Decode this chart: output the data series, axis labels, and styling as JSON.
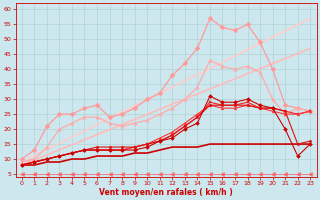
{
  "background_color": "#cce8ee",
  "grid_color": "#aacccc",
  "xlabel": "Vent moyen/en rafales ( km/h )",
  "xlim": [
    -0.5,
    23.5
  ],
  "ylim": [
    4,
    62
  ],
  "yticks": [
    5,
    10,
    15,
    20,
    25,
    30,
    35,
    40,
    45,
    50,
    55,
    60
  ],
  "xticks": [
    0,
    1,
    2,
    3,
    4,
    5,
    6,
    7,
    8,
    9,
    10,
    11,
    12,
    13,
    14,
    15,
    16,
    17,
    18,
    19,
    20,
    21,
    22,
    23
  ],
  "lines": [
    {
      "x": [
        0,
        23
      ],
      "y": [
        9,
        57
      ],
      "color": "#ffcccc",
      "marker": null,
      "linewidth": 1.2,
      "zorder": 1
    },
    {
      "x": [
        0,
        23
      ],
      "y": [
        8,
        47
      ],
      "color": "#ffbbbb",
      "marker": null,
      "linewidth": 1.2,
      "zorder": 1
    },
    {
      "x": [
        0,
        1,
        2,
        3,
        4,
        5,
        6,
        7,
        8,
        9,
        10,
        11,
        12,
        13,
        14,
        15,
        16,
        17,
        18,
        19,
        20,
        21,
        22,
        23
      ],
      "y": [
        10,
        13,
        21,
        25,
        25,
        27,
        28,
        24,
        25,
        27,
        30,
        32,
        38,
        42,
        47,
        57,
        54,
        53,
        55,
        49,
        40,
        28,
        27,
        26
      ],
      "color": "#ff9999",
      "marker": "D",
      "markersize": 2.5,
      "linewidth": 0.9,
      "zorder": 2
    },
    {
      "x": [
        0,
        1,
        2,
        3,
        4,
        5,
        6,
        7,
        8,
        9,
        10,
        11,
        12,
        13,
        14,
        15,
        16,
        17,
        18,
        19,
        20,
        21,
        22,
        23
      ],
      "y": [
        9,
        10,
        14,
        20,
        22,
        24,
        24,
        22,
        21,
        22,
        23,
        25,
        27,
        30,
        34,
        43,
        41,
        40,
        41,
        39,
        30,
        25,
        27,
        26
      ],
      "color": "#ffaaaa",
      "marker": "^",
      "markersize": 2.5,
      "linewidth": 0.9,
      "zorder": 2
    },
    {
      "x": [
        0,
        1,
        2,
        3,
        4,
        5,
        6,
        7,
        8,
        9,
        10,
        11,
        12,
        13,
        14,
        15,
        16,
        17,
        18,
        19,
        20,
        21,
        22,
        23
      ],
      "y": [
        8,
        9,
        10,
        11,
        12,
        13,
        13,
        13,
        13,
        13,
        14,
        16,
        17,
        20,
        22,
        31,
        29,
        29,
        30,
        28,
        27,
        20,
        11,
        15
      ],
      "color": "#cc0000",
      "marker": "D",
      "markersize": 2.0,
      "linewidth": 0.8,
      "zorder": 5
    },
    {
      "x": [
        0,
        1,
        2,
        3,
        4,
        5,
        6,
        7,
        8,
        9,
        10,
        11,
        12,
        13,
        14,
        15,
        16,
        17,
        18,
        19,
        20,
        21,
        22,
        23
      ],
      "y": [
        8,
        9,
        10,
        11,
        12,
        13,
        13,
        13,
        13,
        14,
        15,
        16,
        18,
        21,
        24,
        29,
        28,
        28,
        29,
        27,
        27,
        26,
        25,
        26
      ],
      "color": "#ee2222",
      "marker": "s",
      "markersize": 2.0,
      "linewidth": 0.8,
      "zorder": 4
    },
    {
      "x": [
        0,
        1,
        2,
        3,
        4,
        5,
        6,
        7,
        8,
        9,
        10,
        11,
        12,
        13,
        14,
        15,
        16,
        17,
        18,
        19,
        20,
        21,
        22,
        23
      ],
      "y": [
        8,
        9,
        10,
        11,
        12,
        13,
        13,
        13,
        13,
        14,
        15,
        17,
        19,
        22,
        25,
        28,
        27,
        27,
        28,
        27,
        26,
        25,
        25,
        26
      ],
      "color": "#ff3333",
      "marker": "^",
      "markersize": 2.0,
      "linewidth": 0.8,
      "zorder": 4
    },
    {
      "x": [
        0,
        1,
        2,
        3,
        4,
        5,
        6,
        7,
        8,
        9,
        10,
        11,
        12,
        13,
        14,
        15,
        16,
        17,
        18,
        19,
        20,
        21,
        22,
        23
      ],
      "y": [
        8,
        9,
        10,
        11,
        12,
        13,
        14,
        14,
        14,
        14,
        15,
        16,
        18,
        21,
        24,
        28,
        28,
        28,
        28,
        27,
        27,
        26,
        15,
        16
      ],
      "color": "#dd1111",
      "marker": "p",
      "markersize": 2.0,
      "linewidth": 0.8,
      "zorder": 4
    },
    {
      "x": [
        0,
        1,
        2,
        3,
        4,
        5,
        6,
        7,
        8,
        9,
        10,
        11,
        12,
        13,
        14,
        15,
        16,
        17,
        18,
        19,
        20,
        21,
        22,
        23
      ],
      "y": [
        8,
        8,
        9,
        9,
        10,
        10,
        11,
        11,
        11,
        12,
        12,
        13,
        14,
        14,
        14,
        15,
        15,
        15,
        15,
        15,
        15,
        15,
        15,
        15
      ],
      "color": "#cc0000",
      "marker": null,
      "markersize": 0,
      "linewidth": 1.2,
      "zorder": 3
    },
    {
      "x": [
        0,
        1,
        2,
        3,
        4,
        5,
        6,
        7,
        8,
        9,
        10,
        11,
        12,
        13,
        14,
        15,
        16,
        17,
        18,
        19,
        20,
        21,
        22,
        23
      ],
      "y": [
        5,
        5,
        5,
        5,
        5,
        5,
        5,
        5,
        5,
        5,
        5,
        5,
        5,
        5,
        5,
        5,
        5,
        5,
        5,
        5,
        5,
        5,
        5,
        5
      ],
      "color": "#ff6666",
      "marker": "<",
      "markersize": 3.0,
      "linewidth": 0.5,
      "zorder": 6
    }
  ]
}
